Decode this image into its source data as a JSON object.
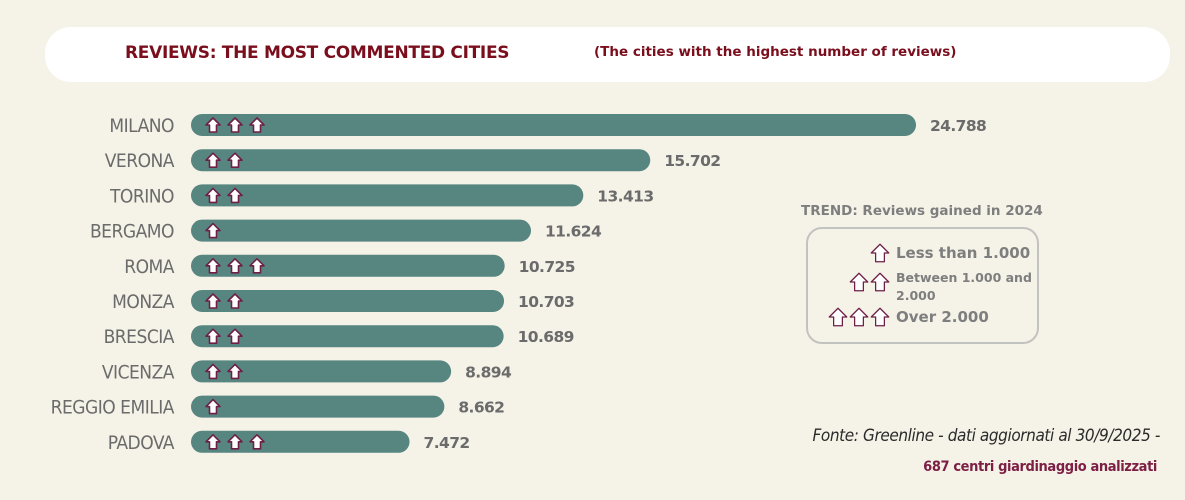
{
  "chart_data": {
    "type": "bar",
    "orientation": "horizontal",
    "title": "REVIEWS: THE MOST COMMENTED CITIES",
    "subtitle": "(The cities with the highest number of reviews)",
    "xlabel": "",
    "ylabel": "",
    "xlim": [
      0,
      24788
    ],
    "grid": false,
    "categories": [
      "MILANO",
      "VERONA",
      "TORINO",
      "BERGAMO",
      "ROMA",
      "MONZA",
      "BRESCIA",
      "VICENZA",
      "REGGIO EMILIA",
      "PADOVA"
    ],
    "values": [
      24788,
      15702,
      13413,
      11624,
      10725,
      10703,
      10689,
      8894,
      8662,
      7472
    ],
    "value_labels": [
      "24.788",
      "15.702",
      "13.413",
      "11.624",
      "10.725",
      "10.703",
      "10.689",
      "8.894",
      "8.662",
      "7.472"
    ],
    "trend_arrows": [
      3,
      2,
      2,
      1,
      3,
      2,
      2,
      2,
      1,
      3
    ],
    "bar_color": "#578580",
    "arrow_fill": "#ffffff",
    "arrow_stroke": "#6e1f45"
  },
  "legend": {
    "title": "TREND: Reviews gained in 2024",
    "placement": "right",
    "items": [
      {
        "arrows": 1,
        "label": "Less than 1.000"
      },
      {
        "arrows": 2,
        "label": "Between 1.000 and 2.000"
      },
      {
        "arrows": 3,
        "label": "Over 2.000"
      }
    ]
  },
  "footer": {
    "source": "Fonte: Greenline - dati aggiornati al 30/9/2025 -",
    "note": "687 centri giardinaggio analizzati"
  }
}
